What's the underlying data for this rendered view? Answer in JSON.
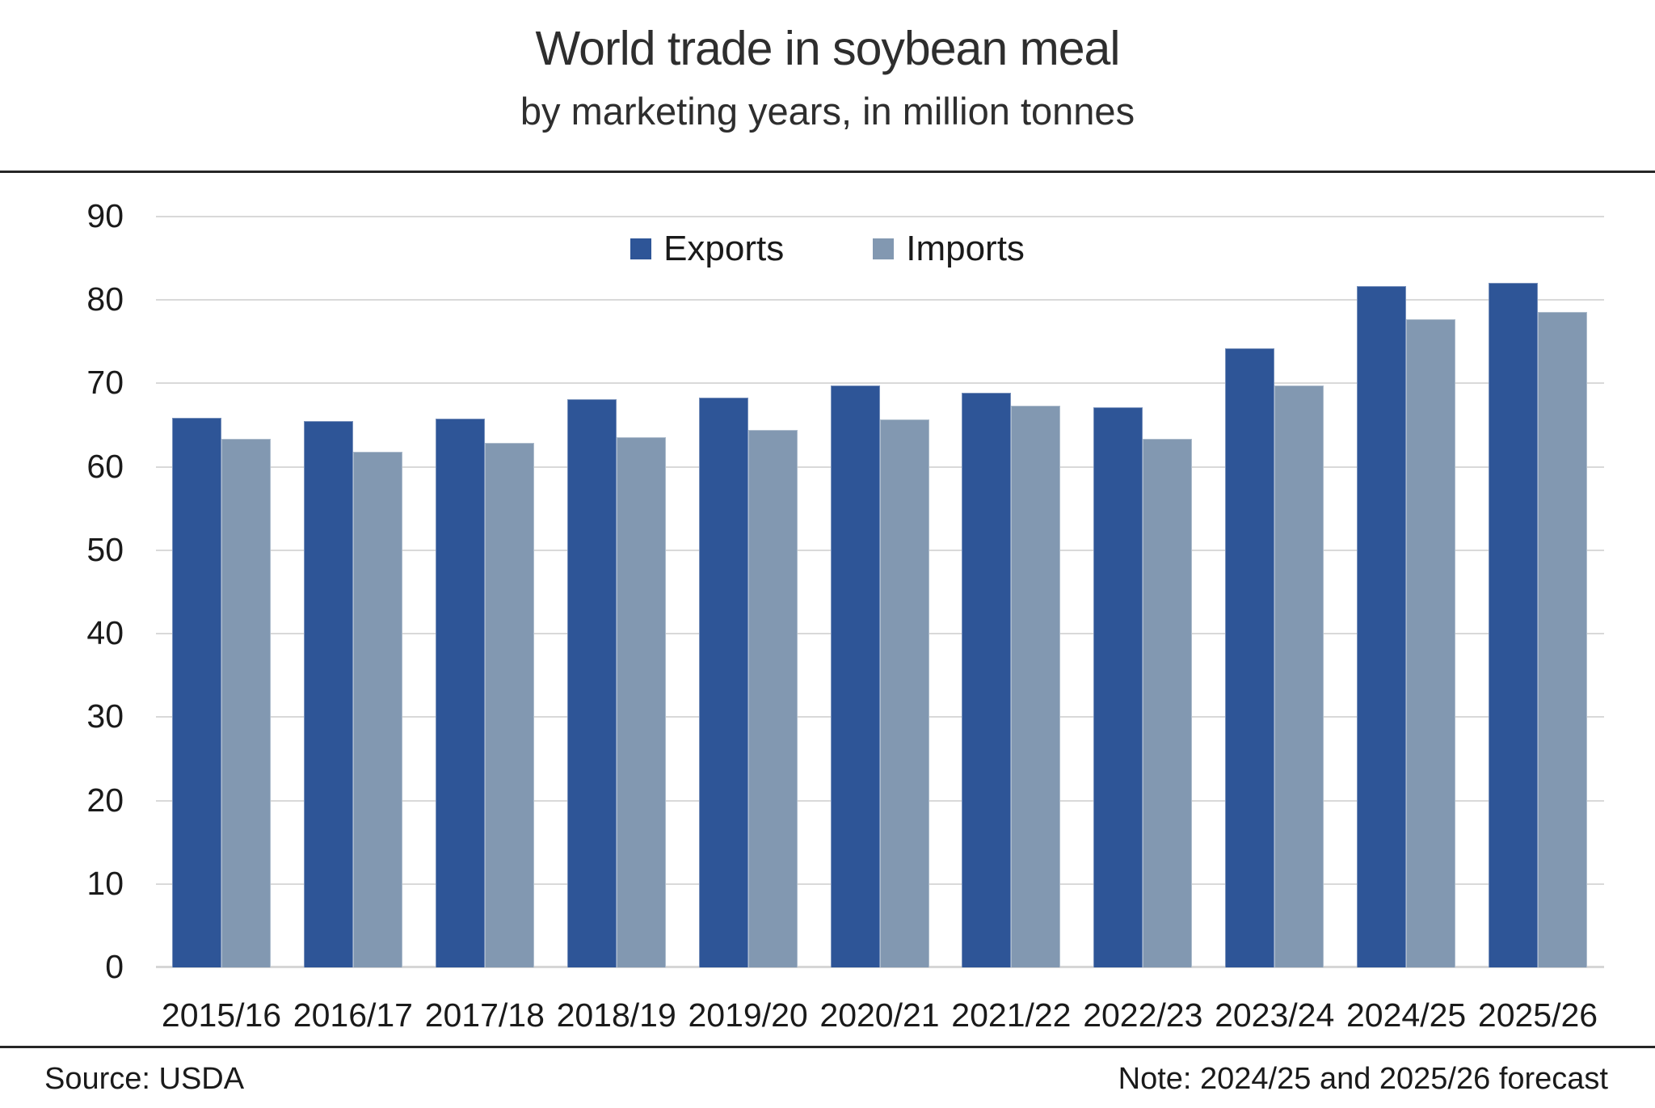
{
  "chart_data": {
    "type": "bar",
    "title": "World trade in soybean meal",
    "subtitle": "by marketing years, in million tonnes",
    "categories": [
      "2015/16",
      "2016/17",
      "2017/18",
      "2018/19",
      "2019/20",
      "2020/21",
      "2021/22",
      "2022/23",
      "2023/24",
      "2024/25",
      "2025/26"
    ],
    "series": [
      {
        "name": "Exports",
        "color": "#2E5597",
        "values": [
          65.9,
          65.5,
          65.8,
          68.1,
          68.3,
          69.8,
          68.9,
          67.1,
          74.2,
          81.7,
          82.1
        ]
      },
      {
        "name": "Imports",
        "color": "#8298B1",
        "values": [
          63.4,
          61.8,
          62.9,
          63.6,
          64.4,
          65.7,
          67.3,
          63.4,
          69.8,
          77.7,
          78.6
        ]
      }
    ],
    "xlabel": "",
    "ylabel": "",
    "ylim": [
      0,
      90
    ],
    "ytick_step": 10,
    "grid": "horizontal",
    "legend_position": "top-center",
    "gridline_color": "#D9D9D9"
  },
  "footer": {
    "source": "Source: USDA",
    "note": "Note: 2024/25 and 2025/26 forecast"
  }
}
